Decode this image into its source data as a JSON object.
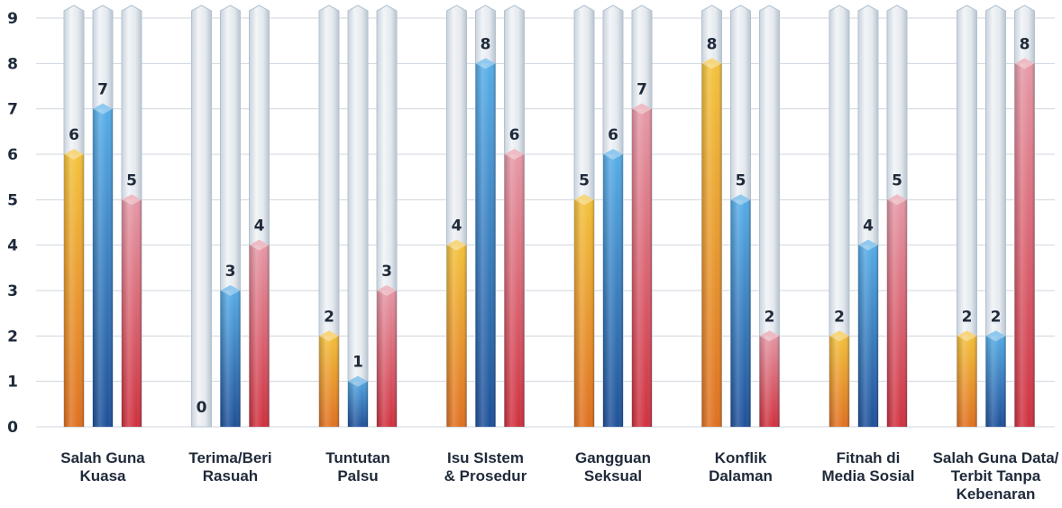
{
  "chart_data": {
    "type": "bar",
    "categories": [
      [
        "Salah Guna",
        "Kuasa"
      ],
      [
        "Terima/Beri",
        "Rasuah"
      ],
      [
        "Tuntutan",
        "Palsu"
      ],
      [
        "Isu SIstem",
        "& Prosedur"
      ],
      [
        "Gangguan",
        "Seksual"
      ],
      [
        "Konflik",
        "Dalaman"
      ],
      [
        "Fitnah di",
        "Media Sosial"
      ],
      [
        "Salah Guna Data/",
        "Terbit Tanpa",
        "Kebenaran"
      ]
    ],
    "series": [
      {
        "values": [
          6,
          0,
          2,
          4,
          5,
          8,
          2,
          2
        ],
        "color": "#e9a020"
      },
      {
        "values": [
          7,
          3,
          1,
          8,
          6,
          5,
          4,
          2
        ],
        "color": "#2f7fc8"
      },
      {
        "values": [
          5,
          4,
          3,
          6,
          7,
          2,
          5,
          8
        ],
        "color": "#d9455a"
      }
    ],
    "ylim": [
      0,
      9
    ],
    "yticks": [
      0,
      1,
      2,
      3,
      4,
      5,
      6,
      7,
      8,
      9
    ],
    "grid": true,
    "title": "",
    "xlabel": "",
    "ylabel": ""
  }
}
